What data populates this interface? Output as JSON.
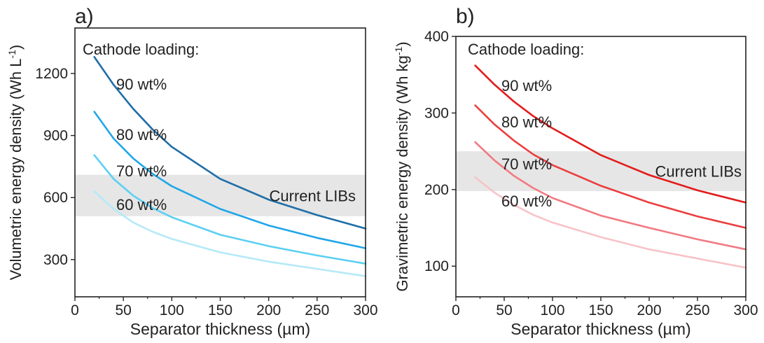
{
  "chart_data": [
    {
      "type": "line",
      "panel_label": "a)",
      "xlabel": "Separator thickness (µm)",
      "ylabel_main": "Volumetric energy density (Wh L",
      "ylabel_sup": "-1",
      "ylabel_close": ")",
      "xlim": [
        0,
        300
      ],
      "ylim": [
        120,
        1420
      ],
      "xticks": [
        0,
        50,
        100,
        150,
        200,
        250,
        300
      ],
      "yticks": [
        300,
        600,
        900,
        1200
      ],
      "grid": false,
      "legend_title": "Cathode loading:",
      "band": {
        "label": "Current LIBs",
        "y_range": [
          510,
          710
        ],
        "color": "#e6e6e6"
      },
      "series": [
        {
          "name": "90 wt%",
          "color": "#1f6ea8",
          "x": [
            20,
            40,
            60,
            80,
            100,
            150,
            200,
            250,
            300
          ],
          "y": [
            1280,
            1145,
            1030,
            930,
            845,
            690,
            590,
            515,
            450
          ]
        },
        {
          "name": "80 wt%",
          "color": "#20a6e8",
          "x": [
            20,
            40,
            60,
            80,
            100,
            150,
            200,
            250,
            300
          ],
          "y": [
            1015,
            885,
            790,
            715,
            655,
            545,
            465,
            405,
            355
          ]
        },
        {
          "name": "70 wt%",
          "color": "#5bd0f2",
          "x": [
            20,
            40,
            60,
            80,
            100,
            150,
            200,
            250,
            300
          ],
          "y": [
            805,
            690,
            610,
            550,
            505,
            420,
            365,
            320,
            280
          ]
        },
        {
          "name": "60 wt%",
          "color": "#b5e9f8",
          "x": [
            20,
            40,
            60,
            80,
            100,
            150,
            200,
            250,
            300
          ],
          "y": [
            630,
            545,
            480,
            435,
            400,
            335,
            290,
            255,
            220
          ]
        }
      ]
    },
    {
      "type": "line",
      "panel_label": "b)",
      "xlabel": "Separator thickness (µm)",
      "ylabel_main": "Gravimetric energy density (Wh kg",
      "ylabel_sup": "-1",
      "ylabel_close": ")",
      "xlim": [
        0,
        300
      ],
      "ylim": [
        60,
        400
      ],
      "xticks": [
        0,
        50,
        100,
        150,
        200,
        250,
        300
      ],
      "yticks": [
        100,
        200,
        300,
        400
      ],
      "grid": false,
      "legend_title": "Cathode loading:",
      "band": {
        "label": "Current LIBs",
        "y_range": [
          198,
          250
        ],
        "color": "#e6e6e6"
      },
      "series": [
        {
          "name": "90 wt%",
          "color": "#e31b1b",
          "x": [
            20,
            40,
            60,
            80,
            100,
            150,
            200,
            250,
            300
          ],
          "y": [
            362,
            337,
            315,
            296,
            280,
            245,
            219,
            199,
            183
          ]
        },
        {
          "name": "80 wt%",
          "color": "#ec3e3e",
          "x": [
            20,
            40,
            60,
            80,
            100,
            150,
            200,
            250,
            300
          ],
          "y": [
            310,
            285,
            264,
            246,
            232,
            205,
            183,
            165,
            150
          ]
        },
        {
          "name": "70 wt%",
          "color": "#f27a82",
          "x": [
            20,
            40,
            60,
            80,
            100,
            150,
            200,
            250,
            300
          ],
          "y": [
            262,
            238,
            218,
            202,
            189,
            166,
            150,
            135,
            122
          ]
        },
        {
          "name": "60 wt%",
          "color": "#f8c3c8",
          "x": [
            20,
            40,
            60,
            80,
            100,
            150,
            200,
            250,
            300
          ],
          "y": [
            216,
            196,
            180,
            167,
            157,
            138,
            122,
            110,
            98
          ]
        }
      ]
    }
  ]
}
